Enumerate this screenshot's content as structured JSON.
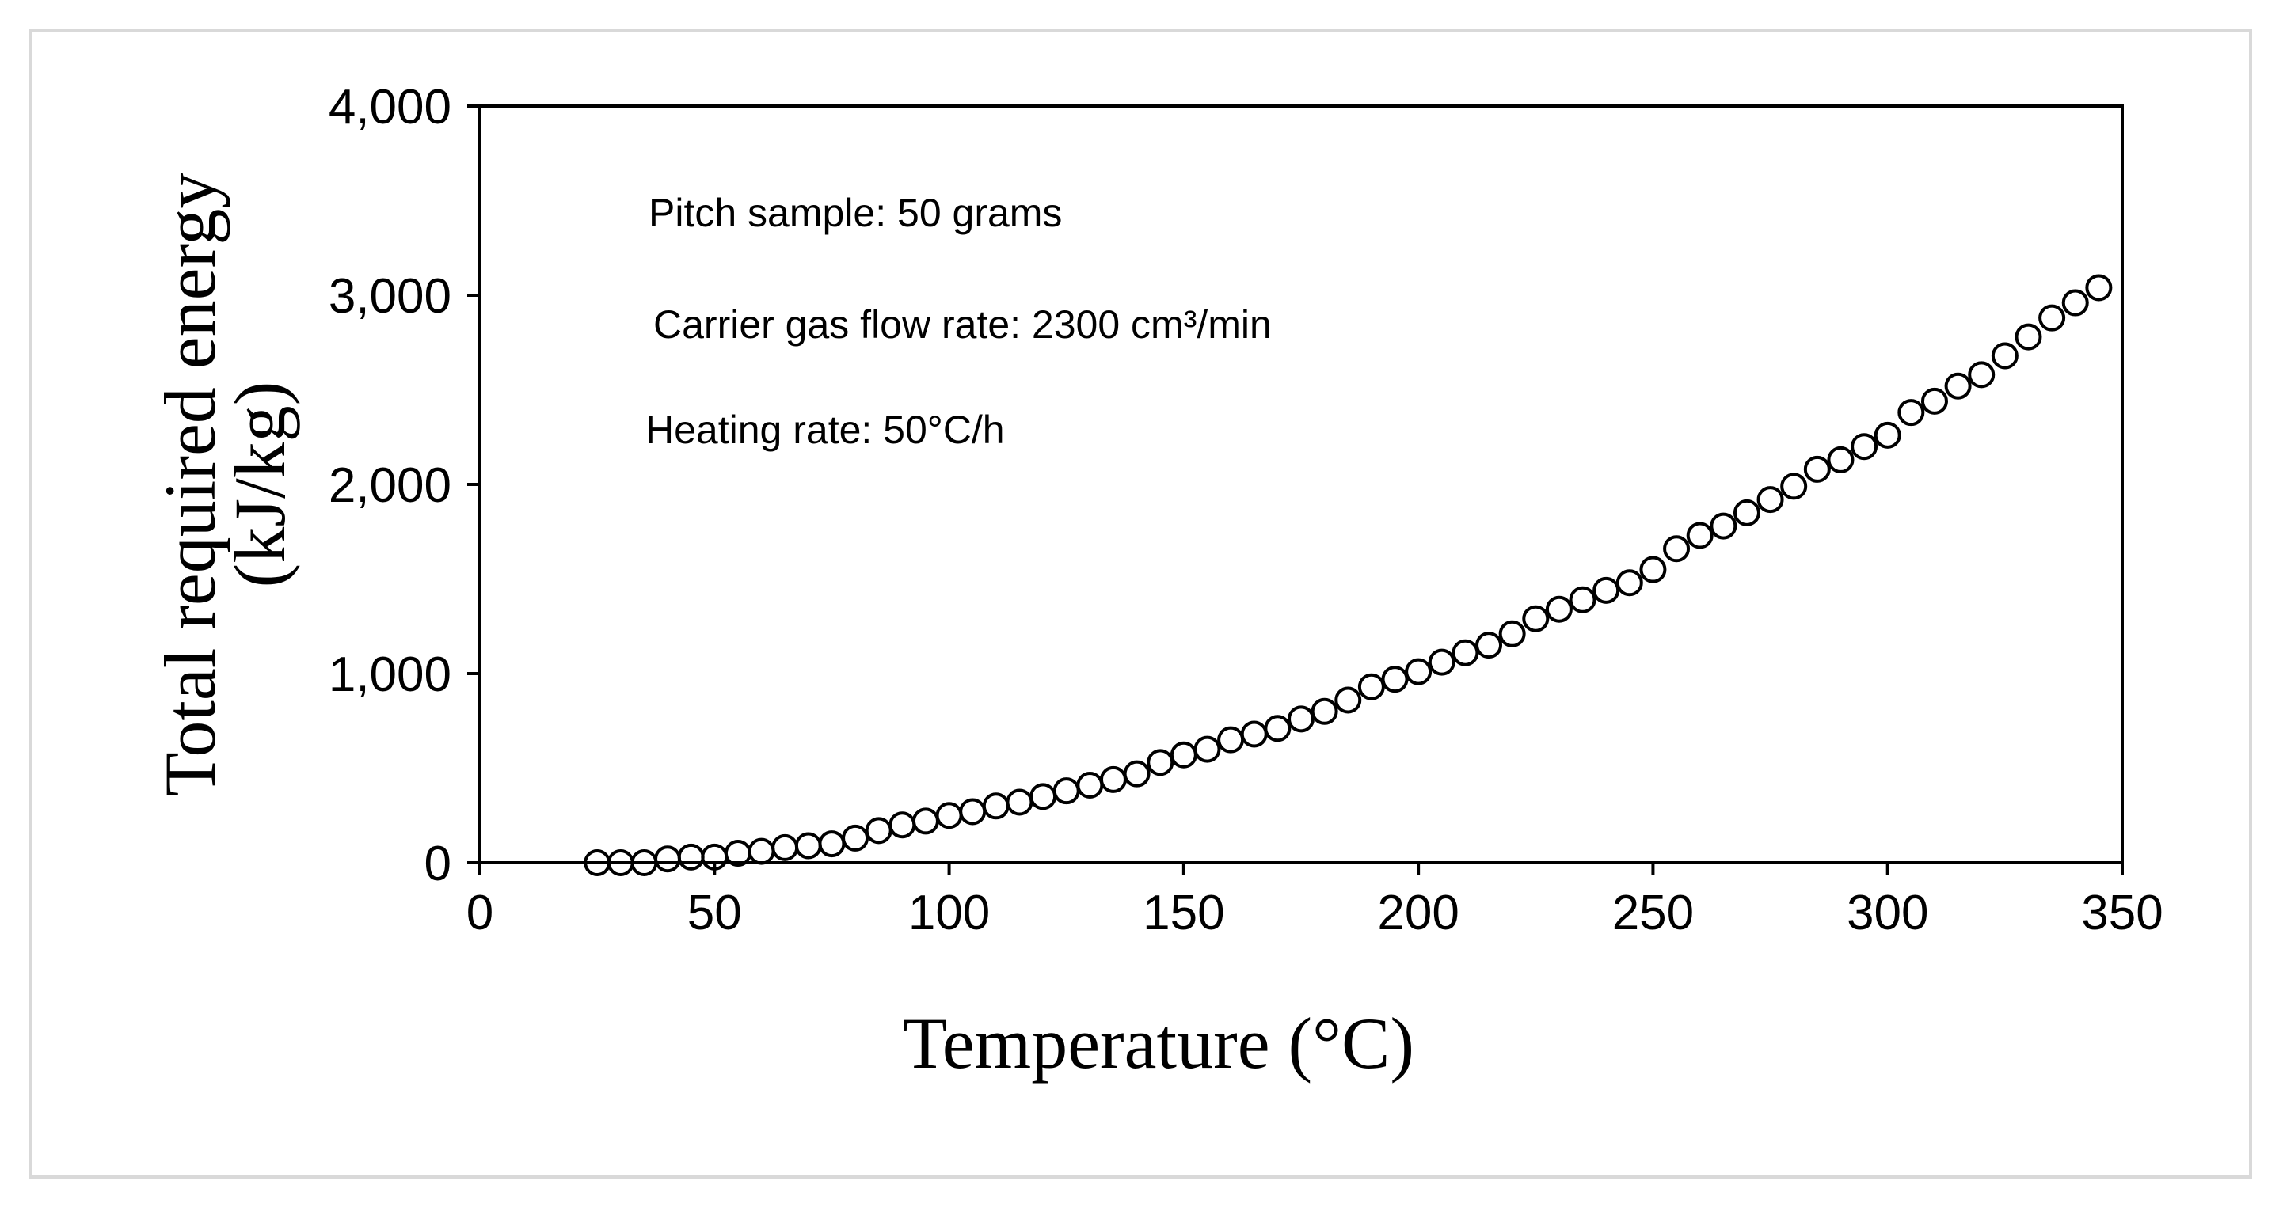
{
  "chart_data": {
    "type": "scatter",
    "title": "",
    "xlabel": "Temperature (°C)",
    "ylabel": "Total required energy",
    "ylabel_line2": "(kJ/kg)",
    "xlim": [
      0,
      350
    ],
    "ylim": [
      0,
      4000
    ],
    "xticks": [
      "0",
      "50",
      "100",
      "150",
      "200",
      "250",
      "300",
      "350"
    ],
    "xtick_values": [
      0,
      50,
      100,
      150,
      200,
      250,
      300,
      350
    ],
    "yticks": [
      "0",
      "1,000",
      "2,000",
      "3,000",
      "4,000"
    ],
    "ytick_values": [
      0,
      1000,
      2000,
      3000,
      4000
    ],
    "grid": false,
    "marker": "open-circle",
    "marker_color": "#000000",
    "annotations": [
      "Pitch sample: 50 grams",
      "Carrier gas flow rate: 2300 cm³/min",
      "Heating rate: 50°C/h"
    ],
    "series": [
      {
        "name": "Total required energy",
        "x": [
          25,
          30,
          35,
          40,
          45,
          50,
          55,
          60,
          65,
          70,
          75,
          80,
          85,
          90,
          95,
          100,
          105,
          110,
          115,
          120,
          125,
          130,
          135,
          140,
          145,
          150,
          155,
          160,
          165,
          170,
          175,
          180,
          185,
          190,
          195,
          200,
          205,
          210,
          215,
          220,
          225,
          230,
          235,
          240,
          245,
          250,
          255,
          260,
          265,
          270,
          275,
          280,
          285,
          290,
          295,
          300,
          305,
          310,
          315,
          320,
          325,
          330,
          335,
          340,
          345
        ],
        "y": [
          0,
          0,
          0,
          20,
          30,
          30,
          50,
          60,
          80,
          90,
          100,
          130,
          170,
          200,
          220,
          250,
          270,
          300,
          320,
          350,
          380,
          410,
          440,
          470,
          530,
          570,
          600,
          650,
          680,
          710,
          760,
          800,
          860,
          930,
          970,
          1010,
          1060,
          1110,
          1150,
          1210,
          1290,
          1340,
          1390,
          1440,
          1480,
          1550,
          1660,
          1730,
          1780,
          1850,
          1920,
          1990,
          2080,
          2130,
          2200,
          2260,
          2380,
          2440,
          2520,
          2580,
          2680,
          2780,
          2880,
          2960,
          3040
        ]
      }
    ]
  }
}
